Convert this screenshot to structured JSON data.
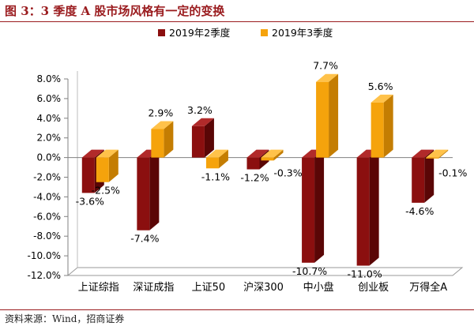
{
  "title": "图 3：3 季度 A 股市场风格有一定的变换",
  "source": "资料来源：Wind，招商证券",
  "colors": {
    "series1": "#8b0f0f",
    "series1_side": "#5a0606",
    "series1_top": "#b12a2a",
    "series2": "#f5a30c",
    "series2_side": "#c47d02",
    "series2_top": "#ffc24a",
    "title": "#9a1b1e"
  },
  "chart_data": {
    "type": "bar",
    "categories": [
      "上证综指",
      "深证成指",
      "上证50",
      "沪深300",
      "中小盘",
      "创业板",
      "万得全A"
    ],
    "series": [
      {
        "name": "2019年2季度",
        "values": [
          -3.6,
          -7.4,
          3.2,
          -1.2,
          -10.7,
          -11.0,
          -4.6
        ],
        "labels": [
          "-3.6%",
          "-7.4%",
          "3.2%",
          "-1.2%",
          "-10.7%",
          "-11.0%",
          "-4.6%"
        ]
      },
      {
        "name": "2019年3季度",
        "values": [
          -2.5,
          2.9,
          -1.1,
          -0.3,
          7.7,
          5.6,
          -0.1
        ],
        "labels": [
          "-2.5%",
          "2.9%",
          "-1.1%",
          "-0.3%",
          "7.7%",
          "5.6%",
          "-0.1%"
        ]
      }
    ],
    "yticks": [
      "8.0%",
      "6.0%",
      "4.0%",
      "2.0%",
      "0.0%",
      "-2.0%",
      "-4.0%",
      "-6.0%",
      "-8.0%",
      "-10.0%",
      "-12.0%"
    ],
    "ylim": [
      -12,
      8
    ],
    "legend_position": "top-center",
    "grid": false
  }
}
